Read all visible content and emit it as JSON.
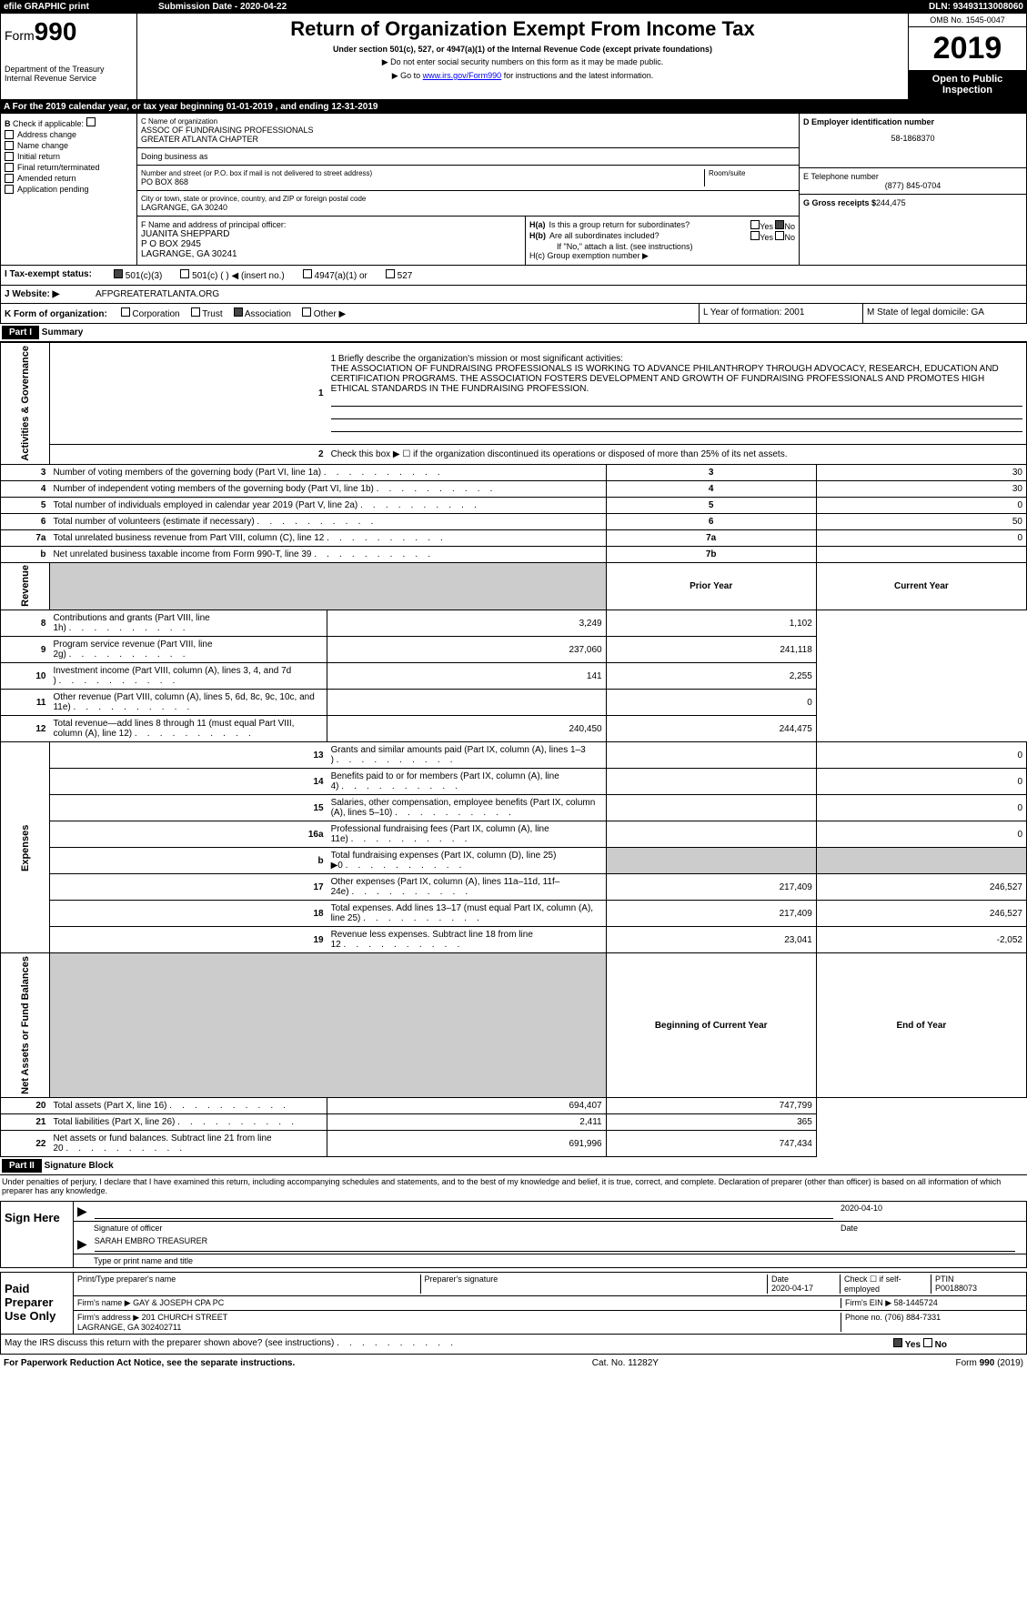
{
  "top_bar": {
    "efile": "efile GRAPHIC print",
    "submission": "Submission Date - 2020-04-22",
    "dln": "DLN: 93493113008060"
  },
  "header": {
    "form_prefix": "Form",
    "form_num": "990",
    "dept": "Department of the Treasury\nInternal Revenue Service",
    "title": "Return of Organization Exempt From Income Tax",
    "subtitle": "Under section 501(c), 527, or 4947(a)(1) of the Internal Revenue Code (except private foundations)",
    "note1": "▶ Do not enter social security numbers on this form as it may be made public.",
    "note2_pre": "▶ Go to ",
    "note2_link": "www.irs.gov/Form990",
    "note2_post": " for instructions and the latest information.",
    "omb": "OMB No. 1545-0047",
    "year": "2019",
    "open": "Open to Public Inspection"
  },
  "row_a": {
    "text": "A   For the 2019 calendar year, or tax year beginning 01-01-2019          , and ending 12-31-2019"
  },
  "section_b": {
    "label": "B",
    "check_label": "Check if applicable:",
    "items": [
      "Address change",
      "Name change",
      "Initial return",
      "Final return/terminated",
      "Amended return",
      "Application pending"
    ],
    "c_label": "C Name of organization",
    "c_name": "ASSOC OF FUNDRAISING PROFESSIONALS\nGREATER ATLANTA CHAPTER",
    "dba": "Doing business as",
    "street_label": "Number and street (or P.O. box if mail is not delivered to street address)",
    "street": "PO BOX 868",
    "room_label": "Room/suite",
    "city_label": "City or town, state or province, country, and ZIP or foreign postal code",
    "city": "LAGRANGE, GA   30240",
    "d_label": "D Employer identification number",
    "d_val": "58-1868370",
    "e_label": "E Telephone number",
    "e_val": "(877) 845-0704",
    "g_label": "G Gross receipts $",
    "g_val": "244,475",
    "f_label": "F  Name and address of principal officer:",
    "f_val": "JUANITA SHEPPARD\nP O BOX 2945\nLAGRANGE, GA   30241",
    "ha": "H(a)   Is this a group return for subordinates?",
    "hb": "H(b)   Are all subordinates included?",
    "hb_note": "If \"No,\" attach a list. (see instructions)",
    "hc": "H(c)   Group exemption number ▶",
    "yes": "Yes",
    "no": "No"
  },
  "tax_status": {
    "label": "I   Tax-exempt status:",
    "opts": [
      "501(c)(3)",
      "501(c) (   ) ◀ (insert no.)",
      "4947(a)(1) or",
      "527"
    ]
  },
  "website": {
    "label": "J   Website: ▶",
    "val": "AFPGREATERATLANTA.ORG"
  },
  "form_org": {
    "label": "K Form of organization:",
    "opts": [
      "Corporation",
      "Trust",
      "Association",
      "Other ▶"
    ],
    "l": "L Year of formation: 2001",
    "m": "M State of legal domicile: GA"
  },
  "part1": {
    "label": "Part I",
    "title": "Summary",
    "q1": "1   Briefly describe the organization's mission or most significant activities:",
    "mission": "THE ASSOCIATION OF FUNDRAISING PROFESSIONALS IS WORKING TO ADVANCE PHILANTHROPY THROUGH ADVOCACY, RESEARCH, EDUCATION AND CERTIFICATION PROGRAMS. THE ASSOCIATION FOSTERS DEVELOPMENT AND GROWTH OF FUNDRAISING PROFESSIONALS AND PROMOTES HIGH ETHICAL STANDARDS IN THE FUNDRAISING PROFESSION.",
    "q2": "Check this box ▶ ☐  if the organization discontinued its operations or disposed of more than 25% of its net assets.",
    "vtab1": "Activities & Governance",
    "vtab2": "Revenue",
    "vtab3": "Expenses",
    "vtab4": "Net Assets or Fund Balances",
    "prior": "Prior Year",
    "current": "Current Year",
    "begin": "Beginning of Current Year",
    "end": "End of Year",
    "lines_ag": [
      {
        "n": "3",
        "t": "Number of voting members of the governing body (Part VI, line 1a)",
        "box": "3",
        "v": "30"
      },
      {
        "n": "4",
        "t": "Number of independent voting members of the governing body (Part VI, line 1b)",
        "box": "4",
        "v": "30"
      },
      {
        "n": "5",
        "t": "Total number of individuals employed in calendar year 2019 (Part V, line 2a)",
        "box": "5",
        "v": "0"
      },
      {
        "n": "6",
        "t": "Total number of volunteers (estimate if necessary)",
        "box": "6",
        "v": "50"
      },
      {
        "n": "7a",
        "t": "Total unrelated business revenue from Part VIII, column (C), line 12",
        "box": "7a",
        "v": "0"
      },
      {
        "n": "b",
        "t": "Net unrelated business taxable income from Form 990-T, line 39",
        "box": "7b",
        "v": ""
      }
    ],
    "lines_rev": [
      {
        "n": "8",
        "t": "Contributions and grants (Part VIII, line 1h)",
        "p": "3,249",
        "c": "1,102"
      },
      {
        "n": "9",
        "t": "Program service revenue (Part VIII, line 2g)",
        "p": "237,060",
        "c": "241,118"
      },
      {
        "n": "10",
        "t": "Investment income (Part VIII, column (A), lines 3, 4, and 7d )",
        "p": "141",
        "c": "2,255"
      },
      {
        "n": "11",
        "t": "Other revenue (Part VIII, column (A), lines 5, 6d, 8c, 9c, 10c, and 11e)",
        "p": "",
        "c": "0"
      },
      {
        "n": "12",
        "t": "Total revenue—add lines 8 through 11 (must equal Part VIII, column (A), line 12)",
        "p": "240,450",
        "c": "244,475"
      }
    ],
    "lines_exp": [
      {
        "n": "13",
        "t": "Grants and similar amounts paid (Part IX, column (A), lines 1–3 )",
        "p": "",
        "c": "0"
      },
      {
        "n": "14",
        "t": "Benefits paid to or for members (Part IX, column (A), line 4)",
        "p": "",
        "c": "0"
      },
      {
        "n": "15",
        "t": "Salaries, other compensation, employee benefits (Part IX, column (A), lines 5–10)",
        "p": "",
        "c": "0"
      },
      {
        "n": "16a",
        "t": "Professional fundraising fees (Part IX, column (A), line 11e)",
        "p": "",
        "c": "0"
      },
      {
        "n": "b",
        "t": "Total fundraising expenses (Part IX, column (D), line 25) ▶0",
        "p": "shaded",
        "c": "shaded"
      },
      {
        "n": "17",
        "t": "Other expenses (Part IX, column (A), lines 11a–11d, 11f–24e)",
        "p": "217,409",
        "c": "246,527"
      },
      {
        "n": "18",
        "t": "Total expenses. Add lines 13–17 (must equal Part IX, column (A), line 25)",
        "p": "217,409",
        "c": "246,527"
      },
      {
        "n": "19",
        "t": "Revenue less expenses. Subtract line 18 from line 12",
        "p": "23,041",
        "c": "-2,052"
      }
    ],
    "lines_net": [
      {
        "n": "20",
        "t": "Total assets (Part X, line 16)",
        "p": "694,407",
        "c": "747,799"
      },
      {
        "n": "21",
        "t": "Total liabilities (Part X, line 26)",
        "p": "2,411",
        "c": "365"
      },
      {
        "n": "22",
        "t": "Net assets or fund balances. Subtract line 21 from line 20",
        "p": "691,996",
        "c": "747,434"
      }
    ]
  },
  "part2": {
    "label": "Part II",
    "title": "Signature Block",
    "penalty": "Under penalties of perjury, I declare that I have examined this return, including accompanying schedules and statements, and to the best of my knowledge and belief, it is true, correct, and complete. Declaration of preparer (other than officer) is based on all information of which preparer has any knowledge.",
    "sign_here": "Sign Here",
    "sig_officer": "Signature of officer",
    "date1": "2020-04-10",
    "date_lbl": "Date",
    "typed": "SARAH EMBRO TREASURER",
    "typed_lbl": "Type or print name and title",
    "paid": "Paid Preparer Use Only",
    "prep_name_lbl": "Print/Type preparer's name",
    "prep_sig_lbl": "Preparer's signature",
    "date2": "2020-04-17",
    "check_se": "Check ☐ if self-employed",
    "ptin_lbl": "PTIN",
    "ptin": "P00188073",
    "firm_name_lbl": "Firm's name    ▶",
    "firm_name": "GAY & JOSEPH CPA PC",
    "firm_ein_lbl": "Firm's EIN ▶",
    "firm_ein": "58-1445724",
    "firm_addr_lbl": "Firm's address ▶",
    "firm_addr": "201 CHURCH STREET\nLAGRANGE, GA 302402711",
    "phone_lbl": "Phone no.",
    "phone": "(706) 884-7331",
    "discuss": "May the IRS discuss this return with the preparer shown above? (see instructions)",
    "yes": "Yes",
    "no": "No"
  },
  "footer": {
    "left": "For Paperwork Reduction Act Notice, see the separate instructions.",
    "mid": "Cat. No. 11282Y",
    "right": "Form 990 (2019)"
  }
}
